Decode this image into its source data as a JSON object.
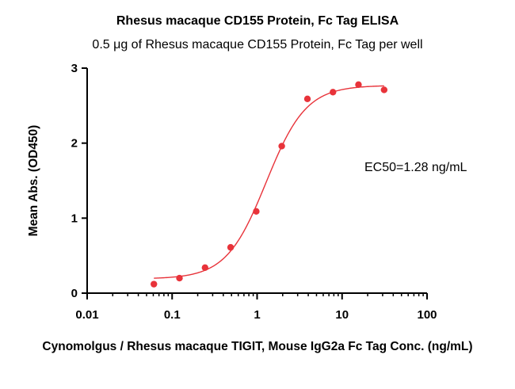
{
  "chart_data": {
    "type": "scatter",
    "title": "Rhesus macaque CD155 Protein, Fc Tag ELISA",
    "subtitle": "0.5 μg of Rhesus macaque CD155 Protein, Fc Tag per well",
    "xlabel": "Cynomolgus / Rhesus macaque TIGIT, Mouse IgG2a Fc Tag Conc. (ng/mL)",
    "ylabel": "Mean Abs. (OD450)",
    "x_scale": "log",
    "xlim": [
      0.01,
      100
    ],
    "ylim": [
      0,
      3
    ],
    "x_ticks": [
      {
        "value": 0.01,
        "label": "0.01"
      },
      {
        "value": 0.1,
        "label": "0.1"
      },
      {
        "value": 1,
        "label": "1"
      },
      {
        "value": 10,
        "label": "10"
      },
      {
        "value": 100,
        "label": "100"
      }
    ],
    "y_ticks": [
      {
        "value": 0,
        "label": "0"
      },
      {
        "value": 1,
        "label": "1"
      },
      {
        "value": 2,
        "label": "2"
      },
      {
        "value": 3,
        "label": "3"
      }
    ],
    "grid": false,
    "series": [
      {
        "color": "#e8333a",
        "points": [
          {
            "x": 0.061,
            "y": 0.12
          },
          {
            "x": 0.122,
            "y": 0.2
          },
          {
            "x": 0.244,
            "y": 0.34
          },
          {
            "x": 0.488,
            "y": 0.61
          },
          {
            "x": 0.977,
            "y": 1.09
          },
          {
            "x": 1.95,
            "y": 1.96
          },
          {
            "x": 3.91,
            "y": 2.59
          },
          {
            "x": 7.81,
            "y": 2.68
          },
          {
            "x": 15.6,
            "y": 2.78
          },
          {
            "x": 31.25,
            "y": 2.71
          }
        ],
        "fit": {
          "model": "4PL",
          "bottom": 0.19,
          "top": 2.77,
          "ec50": 1.28,
          "hill": 1.85
        }
      }
    ],
    "annotations": [
      {
        "text": "EC50=1.28 ng/mL"
      }
    ]
  }
}
